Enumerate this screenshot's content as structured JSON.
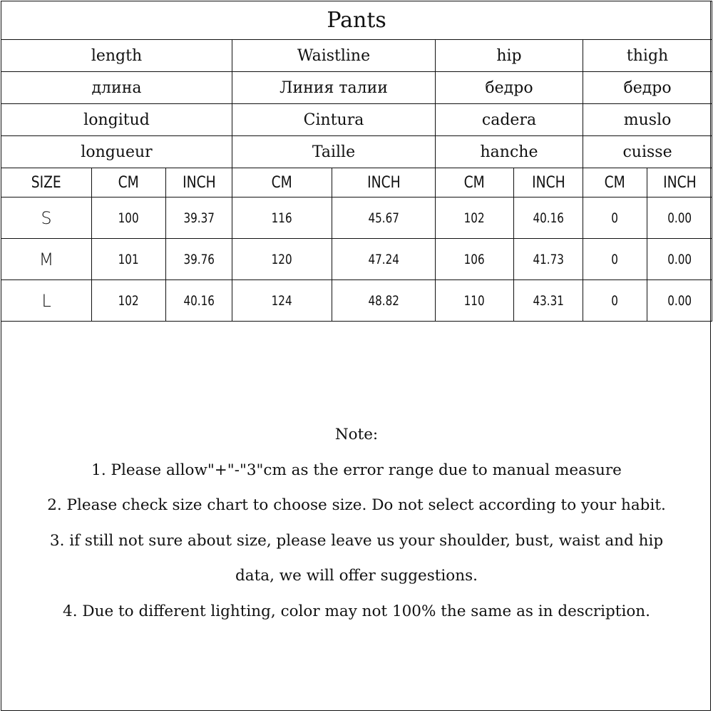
{
  "title": "Pants",
  "measure_rows": [
    [
      "length",
      "Waistline",
      "hip",
      "thigh"
    ],
    [
      "длина",
      "Линия талии",
      "бедро",
      "бедро"
    ],
    [
      "longitud",
      "Cintura",
      "cadera",
      "muslo"
    ],
    [
      "longueur",
      "Taille",
      "hanche",
      "cuisse"
    ]
  ],
  "unit_header": [
    "SIZE",
    "CM",
    "INCH",
    "CM",
    "INCH",
    "CM",
    "INCH",
    "CM",
    "INCH"
  ],
  "sizes": [
    [
      "S",
      "100",
      "39.37",
      "116",
      "45.67",
      "102",
      "40.16",
      "0",
      "0.00"
    ],
    [
      "M",
      "101",
      "39.76",
      "120",
      "47.24",
      "106",
      "41.73",
      "0",
      "0.00"
    ],
    [
      "L",
      "102",
      "40.16",
      "124",
      "48.82",
      "110",
      "43.31",
      "0",
      "0.00"
    ]
  ],
  "notes": {
    "heading": "Note:",
    "lines": [
      "1. Please allow\"+\"-\"3\"cm as the error range due to manual measure",
      "2. Please check size chart to choose size. Do not select according to your habit.",
      "3. if still not sure about size, please leave us your shoulder, bust, waist and hip",
      "data, we will offer suggestions.",
      "4. Due to different lighting, color may not 100% the same as in description."
    ]
  }
}
